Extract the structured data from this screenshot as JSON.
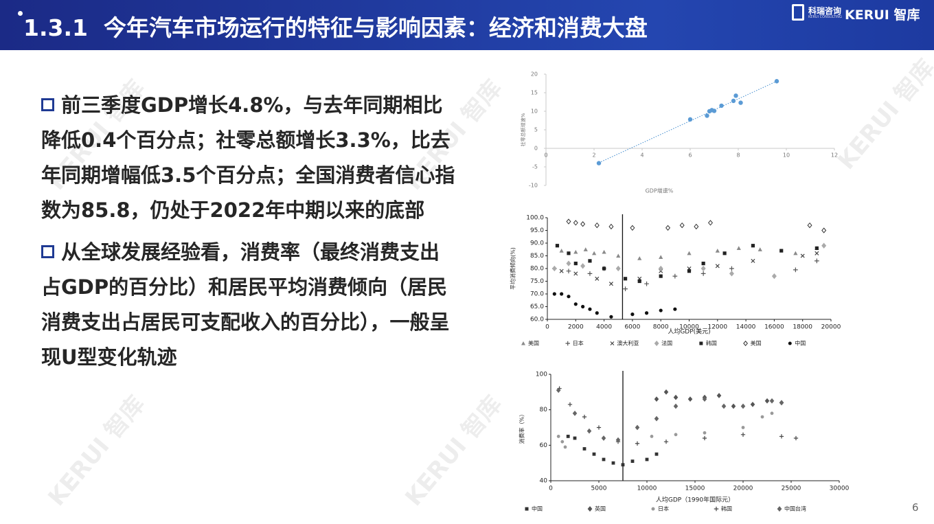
{
  "header": {
    "title": "1.3.1  今年汽车市场运行的特征与影响因素：经济和消费大盘",
    "logo_cn": "科瑞咨询",
    "logo_en": "KERUI CONSULTING",
    "brand": "KERUI 智库"
  },
  "watermark": "KERUI 智库",
  "bullets": [
    "前三季度GDP增长4.8%，与去年同期相比降低0.4个百分点；社零总额增长3.3%，比去年同期增幅低3.5个百分点；全国消费者信心指数为85.8，仍处于2022年中期以来的底部",
    "从全球发展经验看，消费率（最终消费支出占GDP的百分比）和居民平均消费倾向（居民消费支出占居民可支配收入的百分比），一般呈现U型变化轨迹"
  ],
  "page_number": "6",
  "chart_data": [
    {
      "type": "scatter",
      "x_label": "GDP增速%",
      "y_label": "社零总额增速%",
      "color": "#5b9bd5",
      "trendline": true,
      "x": [
        2.2,
        6,
        6.7,
        6.8,
        7,
        6.9,
        7.3,
        7.8,
        7.9,
        8.1,
        9.6
      ],
      "values": [
        -4,
        7.8,
        8.8,
        10,
        10.1,
        10.3,
        11.5,
        12.8,
        14.2,
        12.3,
        18.1
      ],
      "xlim": [
        0,
        12
      ],
      "xticks": [
        0,
        2,
        4,
        6,
        8,
        10,
        12
      ],
      "ylim": [
        -10,
        20
      ],
      "yticks": [
        -10,
        -5,
        0,
        5,
        10,
        15,
        20
      ]
    },
    {
      "type": "scatter",
      "x_label": "人均GDP(美元)",
      "y_label": "平均消费倾向(%)",
      "vline": 5300,
      "xlim": [
        0,
        20000
      ],
      "xticks": [
        0,
        2000,
        4000,
        6000,
        8000,
        10000,
        12000,
        14000,
        16000,
        18000,
        20000
      ],
      "ylim": [
        60,
        100
      ],
      "yticks": [
        {
          "value": 60,
          "label": "60.0"
        },
        {
          "value": 65,
          "label": "65.0"
        },
        {
          "value": 70,
          "label": "70.0"
        },
        {
          "value": 75,
          "label": "75.0"
        },
        {
          "value": 80,
          "label": "80.0"
        },
        {
          "value": 85,
          "label": "85.0"
        },
        {
          "value": 90,
          "label": "90.0"
        },
        {
          "value": 95,
          "label": "95.0"
        },
        {
          "value": 100,
          "label": "100.0"
        }
      ],
      "series": [
        {
          "name": "美国",
          "color": "#8a8a8a",
          "marker": "triangle",
          "x": [
            1000,
            2000,
            2700,
            3300,
            4000,
            5000,
            6500,
            8000,
            10000,
            12000,
            13500,
            15000,
            17500,
            19000
          ],
          "values": [
            87,
            86.5,
            87.5,
            86,
            86.5,
            85,
            84,
            84.5,
            86,
            87,
            88,
            87.5,
            86,
            88
          ]
        },
        {
          "name": "日本",
          "color": "#555555",
          "marker": "plus",
          "x": [
            500,
            1500,
            3000,
            5500,
            7000,
            9000,
            11000,
            13000,
            17500,
            19000
          ],
          "values": [
            80,
            79,
            78,
            72,
            74,
            77,
            78,
            80,
            79.5,
            83
          ]
        },
        {
          "name": "澳大利亚",
          "color": "#444444",
          "marker": "x",
          "x": [
            1000,
            2000,
            3500,
            4500,
            6500,
            8000,
            10000,
            12000,
            14500,
            18000,
            19000
          ],
          "values": [
            79,
            78,
            76,
            74,
            76,
            79,
            80,
            81,
            83,
            85,
            86
          ]
        },
        {
          "name": "法国",
          "color": "#aaaaaa",
          "marker": "diamond",
          "x": [
            500,
            1500,
            2500,
            4000,
            5000,
            8000,
            11000,
            13000,
            16000,
            19500
          ],
          "values": [
            80,
            82,
            81,
            80,
            80,
            80,
            80,
            78,
            77,
            89
          ]
        },
        {
          "name": "韩国",
          "color": "#222222",
          "marker": "square",
          "x": [
            700,
            1500,
            2000,
            3000,
            4000,
            5500,
            6500,
            8000,
            10000,
            11000,
            12500,
            14500,
            16500,
            19000
          ],
          "values": [
            89,
            86,
            82,
            83,
            80,
            76,
            75,
            77,
            79,
            82,
            86,
            89,
            87,
            88
          ]
        },
        {
          "name": "美国",
          "color": "#333333",
          "marker": "open-diamond",
          "x": [
            1500,
            2000,
            2500,
            3500,
            4500,
            6000,
            8500,
            9500,
            10500,
            11500,
            18500,
            19500
          ],
          "values": [
            98.5,
            98,
            97.5,
            97,
            96.5,
            96,
            96,
            97,
            96.5,
            98,
            97,
            95
          ]
        },
        {
          "name": "中国",
          "color": "#111111",
          "marker": "circle",
          "x": [
            500,
            1000,
            1500,
            2000,
            2500,
            3000,
            3500,
            4500,
            6000,
            7000,
            8000,
            9000
          ],
          "values": [
            70,
            70,
            69,
            66,
            65,
            64,
            62.5,
            61,
            62,
            62.5,
            63.5,
            64
          ]
        }
      ]
    },
    {
      "type": "scatter",
      "x_label": "人均GDP（1990年国际元）",
      "y_label": "消费率（%）",
      "vline": 7500,
      "xlim": [
        0,
        30000
      ],
      "xticks": [
        0,
        5000,
        10000,
        15000,
        20000,
        25000,
        30000
      ],
      "ylim": [
        40,
        100
      ],
      "yticks": [
        40,
        60,
        80,
        100
      ],
      "series": [
        {
          "name": "中国",
          "color": "#333333",
          "marker": "square",
          "x": [
            1800,
            2500,
            3500,
            4500,
            5500,
            6500,
            7500,
            8500,
            10000,
            11000
          ],
          "values": [
            65,
            64,
            58,
            55,
            52,
            50,
            49,
            51,
            52,
            55
          ]
        },
        {
          "name": "英国",
          "color": "#555555",
          "marker": "diamond",
          "x": [
            11000,
            12000,
            13000,
            14500,
            16000,
            17500,
            19000,
            21000,
            22500,
            24000
          ],
          "values": [
            86,
            90,
            87,
            86,
            87,
            88,
            82,
            83,
            85,
            84
          ]
        },
        {
          "name": "日本",
          "color": "#999999",
          "marker": "circle",
          "x": [
            800,
            1200,
            1500,
            10500,
            13000,
            16000,
            20000,
            22000,
            23000
          ],
          "values": [
            65,
            62,
            59,
            65,
            66,
            67,
            70,
            76,
            78
          ]
        },
        {
          "name": "韩国",
          "color": "#444444",
          "marker": "plus",
          "x": [
            900,
            2000,
            3500,
            5000,
            7000,
            9000,
            12000,
            16000,
            20000,
            24000,
            25500
          ],
          "values": [
            92,
            83,
            76,
            70,
            62,
            61,
            62,
            64,
            66,
            65,
            64
          ]
        },
        {
          "name": "中国台湾",
          "color": "#666666",
          "marker": "diamond",
          "x": [
            800,
            2500,
            4000,
            5500,
            7000,
            9000,
            11000,
            13000,
            16000,
            18000,
            20000,
            23000,
            24000
          ],
          "values": [
            91,
            78,
            68,
            64,
            63,
            70,
            75,
            82,
            86,
            82,
            82,
            85,
            84
          ]
        }
      ]
    }
  ]
}
